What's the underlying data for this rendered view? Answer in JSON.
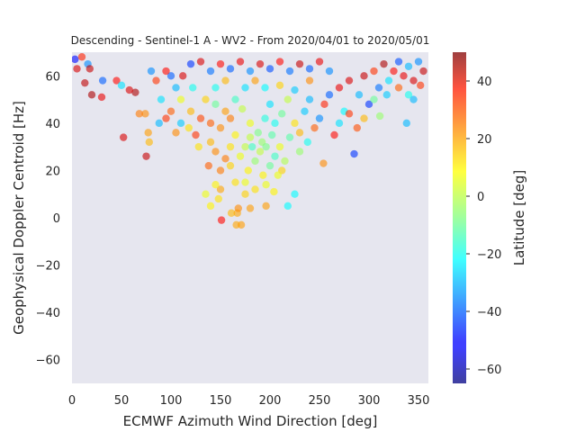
{
  "chart_data": {
    "type": "scatter",
    "title": "Descending - Sentinel-1 A - WV2 - From 2020/04/01 to 2020/05/01",
    "xlabel": "ECMWF Azimuth Wind Direction [deg]",
    "ylabel": "Geophysical Doppler Centroid [Hz]",
    "xlim": [
      0,
      360
    ],
    "ylim": [
      -70,
      70
    ],
    "xticks": [
      0,
      50,
      100,
      150,
      200,
      250,
      300,
      350
    ],
    "yticks": [
      -60,
      -40,
      -20,
      0,
      20,
      40,
      60
    ],
    "grid": false,
    "legend": "none",
    "colorbar": {
      "label": "Latitude [deg]",
      "range": [
        -65,
        50
      ],
      "ticks": [
        -60,
        -40,
        -20,
        0,
        20,
        40
      ],
      "colormap": "jet",
      "placement": "right"
    },
    "points": [
      [
        151,
        -1,
        35
      ],
      [
        161,
        2,
        15
      ],
      [
        167,
        2,
        17
      ],
      [
        166,
        -3,
        17
      ],
      [
        171,
        -3,
        18
      ],
      [
        168,
        4,
        20
      ],
      [
        180,
        4,
        18
      ],
      [
        196,
        5,
        18
      ],
      [
        218,
        5,
        -22
      ],
      [
        140,
        5,
        8
      ],
      [
        148,
        8,
        10
      ],
      [
        150,
        12,
        17
      ],
      [
        175,
        10,
        12
      ],
      [
        135,
        10,
        5
      ],
      [
        204,
        11,
        8
      ],
      [
        225,
        10,
        -22
      ],
      [
        196,
        14,
        5
      ],
      [
        193,
        18,
        8
      ],
      [
        212,
        20,
        12
      ],
      [
        165,
        15,
        10
      ],
      [
        52,
        34,
        40
      ],
      [
        75,
        26,
        42
      ],
      [
        78,
        32,
        15
      ],
      [
        77,
        36,
        18
      ],
      [
        285,
        27,
        -45
      ],
      [
        254,
        23,
        20
      ],
      [
        288,
        38,
        27
      ],
      [
        311,
        43,
        -5
      ],
      [
        338,
        40,
        -30
      ],
      [
        345,
        50,
        -30
      ],
      [
        74,
        44,
        20
      ],
      [
        68,
        44,
        22
      ],
      [
        64,
        53,
        45
      ],
      [
        58,
        54,
        40
      ],
      [
        30,
        51,
        38
      ],
      [
        20,
        52,
        45
      ],
      [
        13,
        57,
        43
      ],
      [
        5,
        63,
        40
      ],
      [
        16,
        65,
        -35
      ],
      [
        31,
        58,
        -40
      ],
      [
        18,
        63,
        42
      ],
      [
        45,
        58,
        35
      ],
      [
        50,
        56,
        -25
      ],
      [
        3,
        67,
        -50
      ],
      [
        10,
        68,
        32
      ],
      [
        140,
        32,
        15
      ],
      [
        145,
        28,
        20
      ],
      [
        155,
        25,
        22
      ],
      [
        160,
        22,
        12
      ],
      [
        170,
        26,
        5
      ],
      [
        178,
        20,
        8
      ],
      [
        185,
        24,
        -5
      ],
      [
        190,
        28,
        0
      ],
      [
        200,
        22,
        -10
      ],
      [
        205,
        26,
        -15
      ],
      [
        210,
        30,
        5
      ],
      [
        215,
        24,
        -2
      ],
      [
        220,
        34,
        -12
      ],
      [
        175,
        30,
        0
      ],
      [
        165,
        35,
        8
      ],
      [
        150,
        38,
        20
      ],
      [
        140,
        40,
        25
      ],
      [
        130,
        42,
        28
      ],
      [
        125,
        35,
        30
      ],
      [
        120,
        45,
        15
      ],
      [
        118,
        38,
        10
      ],
      [
        110,
        50,
        5
      ],
      [
        105,
        55,
        -30
      ],
      [
        100,
        60,
        -40
      ],
      [
        95,
        62,
        35
      ],
      [
        100,
        45,
        25
      ],
      [
        90,
        50,
        -25
      ],
      [
        85,
        58,
        30
      ],
      [
        80,
        62,
        -35
      ],
      [
        112,
        60,
        40
      ],
      [
        122,
        55,
        -20
      ],
      [
        135,
        50,
        12
      ],
      [
        145,
        48,
        -10
      ],
      [
        155,
        45,
        18
      ],
      [
        160,
        42,
        22
      ],
      [
        165,
        50,
        -15
      ],
      [
        172,
        46,
        0
      ],
      [
        180,
        40,
        5
      ],
      [
        188,
        36,
        -8
      ],
      [
        195,
        42,
        -18
      ],
      [
        200,
        48,
        -25
      ],
      [
        205,
        40,
        -20
      ],
      [
        212,
        44,
        -10
      ],
      [
        218,
        50,
        0
      ],
      [
        225,
        40,
        10
      ],
      [
        230,
        36,
        15
      ],
      [
        235,
        45,
        -28
      ],
      [
        240,
        50,
        -30
      ],
      [
        245,
        38,
        25
      ],
      [
        250,
        42,
        -35
      ],
      [
        255,
        48,
        32
      ],
      [
        260,
        52,
        -40
      ],
      [
        265,
        35,
        35
      ],
      [
        270,
        55,
        38
      ],
      [
        275,
        45,
        -22
      ],
      [
        280,
        58,
        40
      ],
      [
        290,
        52,
        -30
      ],
      [
        295,
        60,
        42
      ],
      [
        300,
        48,
        -45
      ],
      [
        305,
        62,
        30
      ],
      [
        310,
        55,
        -38
      ],
      [
        315,
        65,
        45
      ],
      [
        320,
        58,
        -25
      ],
      [
        325,
        62,
        35
      ],
      [
        330,
        66,
        -42
      ],
      [
        335,
        60,
        38
      ],
      [
        340,
        64,
        -30
      ],
      [
        345,
        58,
        40
      ],
      [
        350,
        66,
        -35
      ],
      [
        355,
        62,
        42
      ],
      [
        120,
        65,
        -45
      ],
      [
        130,
        66,
        40
      ],
      [
        140,
        62,
        -38
      ],
      [
        150,
        65,
        35
      ],
      [
        160,
        63,
        -40
      ],
      [
        170,
        66,
        38
      ],
      [
        180,
        62,
        -35
      ],
      [
        190,
        65,
        40
      ],
      [
        200,
        63,
        -42
      ],
      [
        210,
        66,
        35
      ],
      [
        220,
        62,
        -38
      ],
      [
        230,
        65,
        42
      ],
      [
        240,
        63,
        -40
      ],
      [
        250,
        66,
        38
      ],
      [
        260,
        62,
        -35
      ],
      [
        145,
        55,
        -20
      ],
      [
        155,
        58,
        15
      ],
      [
        175,
        55,
        -25
      ],
      [
        185,
        58,
        18
      ],
      [
        195,
        55,
        -22
      ],
      [
        210,
        56,
        12
      ],
      [
        225,
        54,
        -28
      ],
      [
        240,
        58,
        20
      ],
      [
        128,
        30,
        10
      ],
      [
        138,
        22,
        25
      ],
      [
        182,
        30,
        -15
      ],
      [
        192,
        32,
        -5
      ],
      [
        202,
        35,
        -12
      ],
      [
        208,
        18,
        5
      ],
      [
        185,
        12,
        10
      ],
      [
        175,
        15,
        5
      ],
      [
        160,
        30,
        10
      ],
      [
        150,
        20,
        22
      ],
      [
        145,
        14,
        8
      ],
      [
        180,
        34,
        0
      ],
      [
        196,
        30,
        -8
      ],
      [
        230,
        28,
        -5
      ],
      [
        238,
        32,
        -20
      ],
      [
        110,
        40,
        -28
      ],
      [
        105,
        36,
        20
      ],
      [
        95,
        42,
        30
      ],
      [
        88,
        40,
        -30
      ],
      [
        270,
        40,
        -25
      ],
      [
        280,
        44,
        30
      ],
      [
        295,
        42,
        15
      ],
      [
        305,
        50,
        -10
      ],
      [
        318,
        52,
        -28
      ],
      [
        330,
        55,
        25
      ],
      [
        340,
        52,
        -20
      ],
      [
        352,
        56,
        30
      ]
    ]
  }
}
